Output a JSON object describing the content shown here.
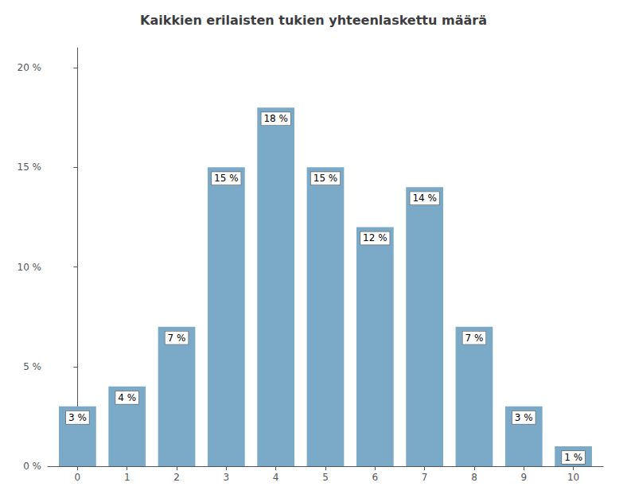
{
  "chart_data": {
    "type": "bar",
    "title": "Kaikkien erilaisten tukien yhteenlaskettu määrä",
    "x": [
      0,
      1,
      2,
      3,
      4,
      5,
      6,
      7,
      8,
      9,
      10
    ],
    "values": [
      3,
      4,
      7,
      15,
      18,
      15,
      12,
      14,
      7,
      3,
      1
    ],
    "value_labels": [
      "3 %",
      "4 %",
      "7 %",
      "15 %",
      "18 %",
      "15 %",
      "12 %",
      "14 %",
      "7 %",
      "3 %",
      "1 %"
    ],
    "data_labels": true,
    "color": "#7BAAC8",
    "xlim": [
      -0.6,
      10.6
    ],
    "xticks": [
      0,
      1,
      2,
      3,
      4,
      5,
      6,
      7,
      8,
      9,
      10
    ],
    "ylim": [
      0,
      21
    ],
    "yticks": [
      {
        "value": 0,
        "label": "0 %"
      },
      {
        "value": 5,
        "label": "5 %"
      },
      {
        "value": 10,
        "label": "10 %"
      },
      {
        "value": 15,
        "label": "15 %"
      },
      {
        "value": 20,
        "label": "20 %"
      }
    ],
    "grid": false
  }
}
